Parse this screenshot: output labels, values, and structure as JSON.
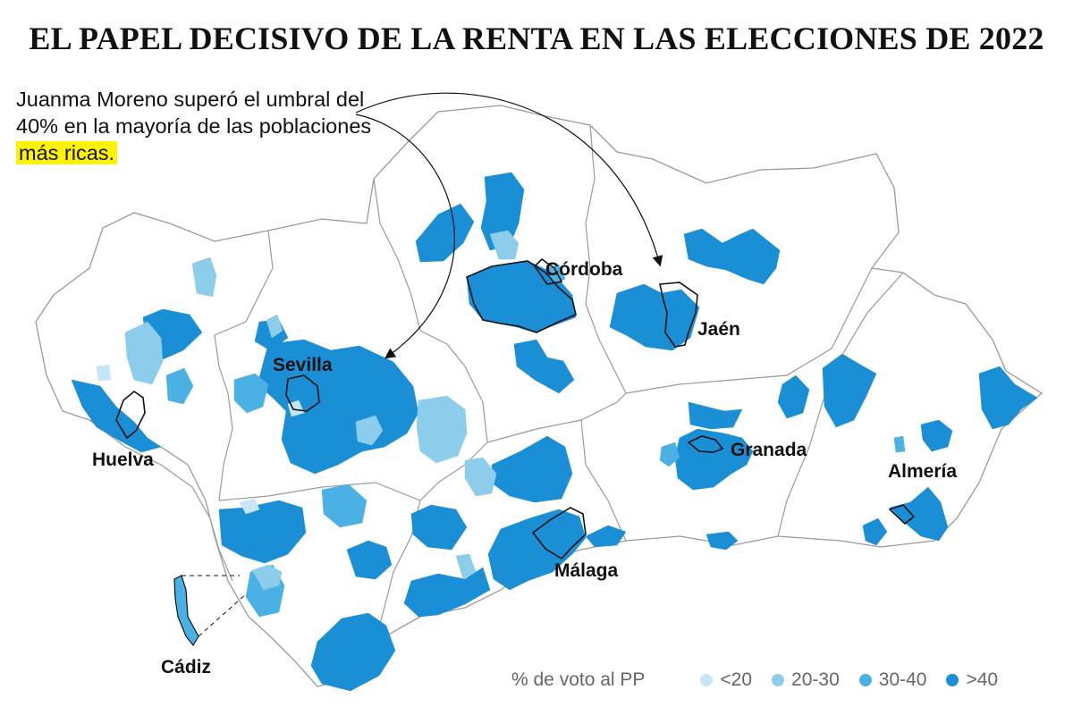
{
  "title": "EL PAPEL DECISIVO DE LA RENTA EN LAS ELECCIONES DE 2022",
  "annotation": {
    "text_before": "Juanma Moreno superó el umbral del 40% en la mayoría de las poblaciones ",
    "highlight": "más ricas."
  },
  "cities": {
    "cordoba": "Córdoba",
    "jaen": "Jaén",
    "sevilla": "Sevilla",
    "huelva": "Huelva",
    "granada": "Granada",
    "almeria": "Almería",
    "malaga": "Málaga",
    "cadiz": "Cádiz"
  },
  "legend": {
    "title": "% de voto al PP",
    "items": [
      {
        "label": "<20",
        "color": "#c6e6f7"
      },
      {
        "label": "20-30",
        "color": "#8dcdec"
      },
      {
        "label": "30-40",
        "color": "#4bb0e3"
      },
      {
        "label": ">40",
        "color": "#1b8fd6"
      }
    ]
  },
  "colors": {
    "highlight": "#fff200",
    "outline": "#9a9a9a",
    "capital_outline": "#111111"
  }
}
